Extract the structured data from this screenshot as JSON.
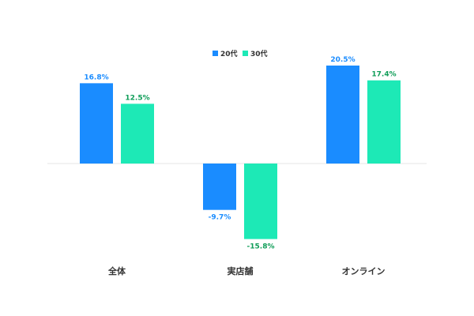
{
  "chart_data": {
    "type": "bar",
    "categories": [
      "全体",
      "実店舗",
      "オンライン"
    ],
    "series": [
      {
        "name": "20代",
        "values": [
          16.8,
          -9.7,
          20.5
        ],
        "labels": [
          "16.8%",
          "-9.7%",
          "20.5%"
        ],
        "color": "#1a8cff",
        "label_color": "#1a8cff"
      },
      {
        "name": "30代",
        "values": [
          12.5,
          -15.8,
          17.4
        ],
        "labels": [
          "12.5%",
          "-15.8%",
          "17.4%"
        ],
        "color": "#1de9b6",
        "label_color": "#0f9d58"
      }
    ],
    "ylim": [
      -18,
      22
    ],
    "legend_position": "top-center",
    "grid": false,
    "title": "",
    "xlabel": "",
    "ylabel": ""
  }
}
